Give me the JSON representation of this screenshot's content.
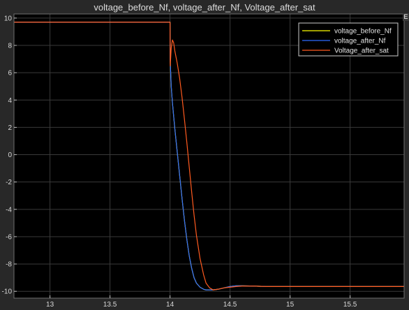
{
  "chart_data": {
    "type": "line",
    "title": "voltage_before_Nf, voltage_after_Nf, Voltage_after_sat",
    "xlabel": "",
    "ylabel": "",
    "xlim": [
      12.7,
      15.95
    ],
    "ylim": [
      -10.5,
      10.3
    ],
    "x_ticks": [
      13,
      13.5,
      14,
      14.5,
      15,
      15.5
    ],
    "x_tick_labels": [
      "13",
      "13.5",
      "14",
      "14.5",
      "15",
      "15.5"
    ],
    "y_ticks": [
      10,
      8,
      6,
      4,
      2,
      0,
      -2,
      -4,
      -6,
      -8,
      -10
    ],
    "y_tick_labels": [
      "10",
      "8",
      "6",
      "4",
      "2",
      "0",
      "-2",
      "-4",
      "-6",
      "-8",
      "-10"
    ],
    "grid": true,
    "legend_position": "top-right",
    "series": [
      {
        "name": "voltage_before_Nf",
        "color": "#ffff00",
        "x": [
          12.7,
          14.0,
          14.001,
          14.01,
          14.02,
          14.04,
          14.06,
          14.08,
          14.1,
          14.12,
          14.14,
          14.16,
          14.18,
          14.2,
          14.22,
          14.25,
          14.28,
          14.3,
          14.35,
          14.4,
          14.45,
          14.5,
          14.55,
          14.6,
          14.7,
          14.8,
          15.0,
          15.5,
          15.95
        ],
        "y": [
          9.7,
          9.7,
          7.0,
          5.0,
          3.8,
          1.9,
          0.2,
          -1.5,
          -3.2,
          -4.8,
          -6.2,
          -7.4,
          -8.3,
          -9.0,
          -9.4,
          -9.7,
          -9.85,
          -9.9,
          -9.9,
          -9.85,
          -9.75,
          -9.65,
          -9.6,
          -9.6,
          -9.62,
          -9.65,
          -9.65,
          -9.65,
          -9.65
        ]
      },
      {
        "name": "voltage_after_Nf",
        "color": "#2e6bff",
        "x": [
          12.7,
          14.0,
          14.001,
          14.01,
          14.02,
          14.04,
          14.06,
          14.08,
          14.1,
          14.12,
          14.14,
          14.16,
          14.18,
          14.2,
          14.22,
          14.25,
          14.28,
          14.3,
          14.35,
          14.4,
          14.45,
          14.5,
          14.55,
          14.6,
          14.7,
          14.8,
          15.0,
          15.5,
          15.95
        ],
        "y": [
          9.7,
          9.7,
          7.0,
          5.0,
          3.8,
          1.9,
          0.2,
          -1.5,
          -3.2,
          -4.8,
          -6.2,
          -7.4,
          -8.3,
          -9.0,
          -9.4,
          -9.7,
          -9.85,
          -9.9,
          -9.9,
          -9.85,
          -9.75,
          -9.65,
          -9.6,
          -9.6,
          -9.62,
          -9.65,
          -9.65,
          -9.65,
          -9.65
        ]
      },
      {
        "name": "Voltage_after_sat",
        "color": "#ff5a1f",
        "x": [
          12.7,
          14.0,
          14.002,
          14.01,
          14.02,
          14.03,
          14.04,
          14.06,
          14.08,
          14.1,
          14.12,
          14.14,
          14.16,
          14.18,
          14.2,
          14.22,
          14.25,
          14.28,
          14.3,
          14.33,
          14.36,
          14.4,
          14.45,
          14.5,
          14.55,
          14.6,
          14.7,
          14.8,
          15.0,
          15.5,
          15.95
        ],
        "y": [
          9.7,
          9.7,
          6.5,
          7.8,
          8.4,
          8.2,
          7.6,
          6.7,
          5.6,
          4.2,
          2.6,
          0.9,
          -0.9,
          -2.7,
          -4.4,
          -5.9,
          -7.6,
          -8.8,
          -9.4,
          -9.75,
          -9.9,
          -9.85,
          -9.75,
          -9.7,
          -9.65,
          -9.62,
          -9.62,
          -9.65,
          -9.65,
          -9.65,
          -9.65
        ]
      }
    ]
  }
}
